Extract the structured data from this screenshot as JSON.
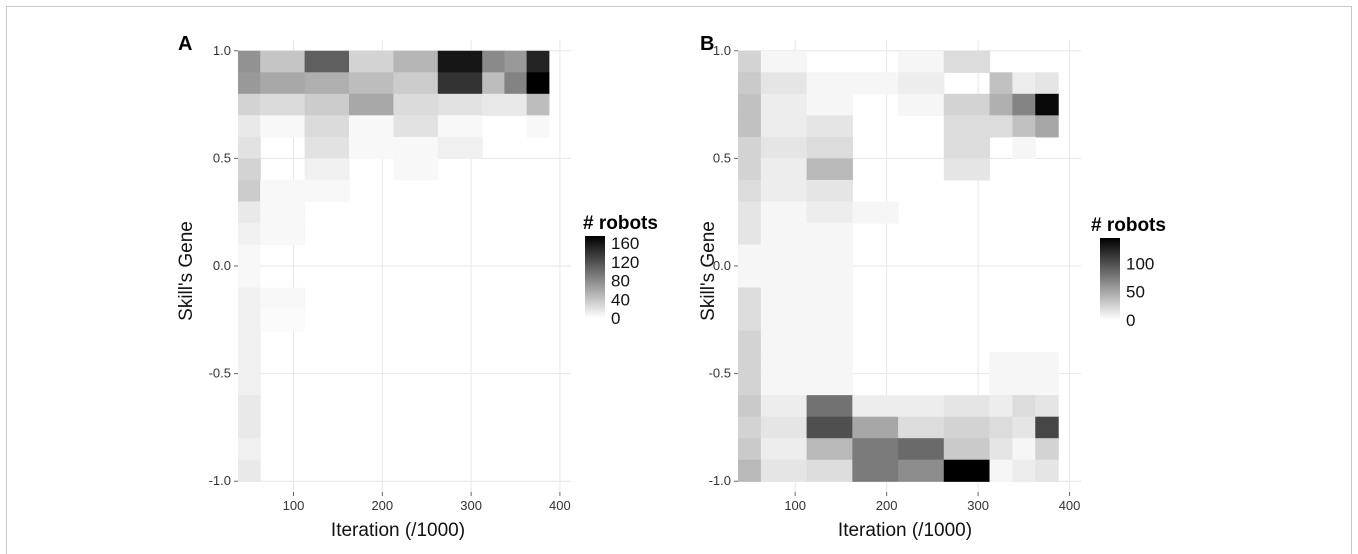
{
  "chart_data": [
    {
      "type": "heatmap",
      "panel": "A",
      "xlabel": "Iteration (/1000)",
      "ylabel": "Skill's Gene",
      "x_ticks": [
        100,
        200,
        300,
        400
      ],
      "y_ticks": [
        "-1.0",
        "-0.5",
        "0.0",
        "0.5",
        "1.0"
      ],
      "xlim": [
        37.5,
        412.5
      ],
      "ylim": [
        -1.05,
        1.05
      ],
      "x_bins": [
        62.5,
        112.5,
        137.5,
        162.5,
        187.5,
        212.5,
        237.5,
        262.5,
        287.5,
        312.5,
        337.5,
        362.5,
        387.5
      ],
      "x": [
        50,
        100,
        125,
        150,
        175,
        200,
        225,
        250,
        275,
        300,
        325,
        350,
        375,
        400
      ],
      "y": [
        0.95,
        0.85,
        0.75,
        0.65,
        0.55,
        0.45,
        0.35,
        0.25,
        0.15,
        0.05,
        -0.05,
        -0.15,
        -0.25,
        -0.35,
        -0.45,
        -0.55,
        -0.65,
        -0.75,
        -0.85,
        -0.95
      ],
      "values": [
        [
          75,
          40,
          110,
          30,
          50,
          160,
          80,
          70,
          150
        ],
        [
          70,
          60,
          55,
          45,
          35,
          140,
          45,
          85,
          175
        ],
        [
          30,
          25,
          35,
          60,
          25,
          20,
          15,
          15,
          45
        ],
        [
          15,
          5,
          25,
          5,
          20,
          5,
          0,
          0,
          5
        ],
        [
          20,
          0,
          20,
          5,
          5,
          10,
          0,
          0,
          0
        ],
        [
          30,
          0,
          10,
          0,
          5,
          0,
          0,
          0,
          0
        ],
        [
          35,
          5,
          5,
          0,
          0,
          0,
          0,
          0,
          0
        ],
        [
          15,
          5,
          0,
          0,
          0,
          0,
          0,
          0,
          0
        ],
        [
          10,
          5,
          0,
          0,
          0,
          0,
          0,
          0,
          0
        ],
        [
          5,
          0,
          0,
          0,
          0,
          0,
          0,
          0,
          0
        ],
        [
          5,
          0,
          0,
          0,
          0,
          0,
          0,
          0,
          0
        ],
        [
          10,
          5,
          0,
          0,
          0,
          0,
          0,
          0,
          0
        ],
        [
          10,
          3,
          0,
          0,
          0,
          0,
          0,
          0,
          0
        ],
        [
          10,
          0,
          0,
          0,
          0,
          0,
          0,
          0,
          0
        ],
        [
          10,
          0,
          0,
          0,
          0,
          0,
          0,
          0,
          0
        ],
        [
          10,
          0,
          0,
          0,
          0,
          0,
          0,
          0,
          0
        ],
        [
          15,
          0,
          0,
          0,
          0,
          0,
          0,
          0,
          0
        ],
        [
          15,
          0,
          0,
          0,
          0,
          0,
          0,
          0,
          0
        ],
        [
          10,
          0,
          0,
          0,
          0,
          0,
          0,
          0,
          0
        ],
        [
          15,
          0,
          0,
          0,
          0,
          0,
          0,
          0,
          0
        ]
      ],
      "legend": {
        "title": "# robots",
        "ticks": [
          0,
          40,
          80,
          120,
          160
        ],
        "max": 175
      }
    },
    {
      "type": "heatmap",
      "panel": "B",
      "xlabel": "Iteration (/1000)",
      "ylabel": "Skill's Gene",
      "x_ticks": [
        100,
        200,
        300,
        400
      ],
      "y_ticks": [
        "-1.0",
        "-0.5",
        "0.0",
        "0.5",
        "1.0"
      ],
      "xlim": [
        37.5,
        412.5
      ],
      "ylim": [
        -1.05,
        1.05
      ],
      "x_bins": [
        62.5,
        112.5,
        137.5,
        162.5,
        187.5,
        212.5,
        237.5,
        262.5,
        287.5,
        312.5,
        337.5,
        362.5,
        387.5
      ],
      "x": [
        50,
        100,
        125,
        150,
        175,
        200,
        225,
        250,
        275,
        300,
        325,
        350,
        375,
        400
      ],
      "y": [
        0.95,
        0.85,
        0.75,
        0.65,
        0.55,
        0.45,
        0.35,
        0.25,
        0.15,
        0.05,
        -0.05,
        -0.15,
        -0.25,
        -0.35,
        -0.45,
        -0.55,
        -0.65,
        -0.75,
        -0.85,
        -0.95
      ],
      "values": [
        [
          25,
          5,
          0,
          0,
          5,
          20,
          0,
          0,
          0
        ],
        [
          30,
          15,
          5,
          5,
          10,
          0,
          35,
          10,
          15
        ],
        [
          35,
          10,
          5,
          0,
          5,
          25,
          45,
          70,
          140
        ],
        [
          35,
          10,
          15,
          0,
          0,
          20,
          20,
          35,
          50
        ],
        [
          25,
          15,
          20,
          0,
          0,
          20,
          0,
          5,
          0
        ],
        [
          25,
          10,
          40,
          0,
          0,
          15,
          0,
          0,
          0
        ],
        [
          20,
          10,
          15,
          0,
          0,
          0,
          0,
          0,
          0
        ],
        [
          15,
          5,
          10,
          5,
          0,
          0,
          0,
          0,
          0
        ],
        [
          15,
          5,
          5,
          0,
          0,
          0,
          0,
          0,
          0
        ],
        [
          5,
          5,
          5,
          0,
          0,
          0,
          0,
          0,
          0
        ],
        [
          5,
          5,
          5,
          0,
          0,
          0,
          0,
          0,
          0
        ],
        [
          20,
          5,
          5,
          0,
          0,
          0,
          0,
          0,
          0
        ],
        [
          20,
          5,
          5,
          0,
          0,
          0,
          0,
          0,
          0
        ],
        [
          25,
          5,
          5,
          0,
          0,
          0,
          0,
          0,
          0
        ],
        [
          25,
          5,
          5,
          0,
          0,
          0,
          5,
          5,
          5
        ],
        [
          25,
          5,
          5,
          0,
          0,
          0,
          5,
          5,
          5
        ],
        [
          30,
          10,
          80,
          10,
          10,
          15,
          10,
          20,
          15
        ],
        [
          25,
          15,
          100,
          50,
          20,
          25,
          20,
          15,
          105
        ],
        [
          30,
          10,
          40,
          75,
          85,
          30,
          15,
          5,
          25
        ],
        [
          40,
          15,
          20,
          75,
          65,
          145,
          5,
          10,
          15
        ]
      ],
      "legend": {
        "title": "# robots",
        "ticks": [
          0,
          50,
          100
        ],
        "max": 145
      }
    }
  ],
  "colors": {
    "low": "#ffffff",
    "high": "#000000",
    "grid": "#e6e6e6",
    "axis_text": "#333333"
  }
}
